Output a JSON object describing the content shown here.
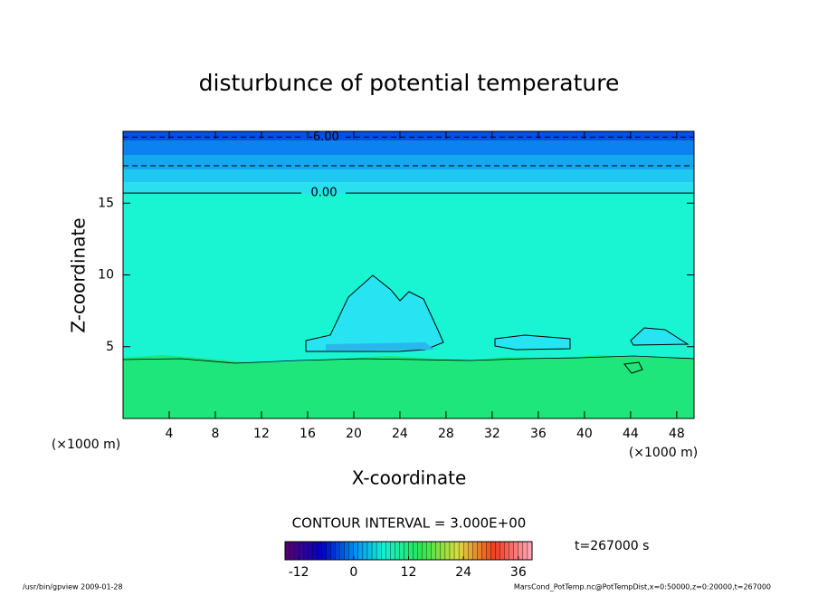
{
  "chart_data": {
    "type": "contour",
    "title": "disturbunce of potential temperature",
    "xlabel": "X-coordinate",
    "ylabel": "Z-coordinate",
    "x_unit_left": "(×1000 m)",
    "x_unit_right": "(×1000 m)",
    "xlim": [
      0,
      49.5
    ],
    "xticks": [
      4,
      8,
      12,
      16,
      20,
      24,
      28,
      32,
      36,
      40,
      44,
      48
    ],
    "ylim": [
      0,
      20
    ],
    "yticks": [
      5,
      10,
      15
    ],
    "contour_lines": [
      {
        "value": -6,
        "label": "-6.00",
        "z": 19.6,
        "style": "dashed"
      },
      {
        "value": -3,
        "z": 17.6,
        "style": "dashed"
      },
      {
        "value": 0,
        "label": "0.00",
        "z": 15.7,
        "style": "solid"
      }
    ],
    "contour_interval": "CONTOUR INTERVAL = 3.000E+00",
    "time_label": "t=267000 s",
    "clim": [
      -15,
      39
    ],
    "cticks": [
      -12,
      0,
      12,
      24,
      36
    ],
    "footer_left": "/usr/bin/gpview   2009-01-28",
    "footer_right": "MarsCond_PotTemp.nc@PotTempDist,x=0:50000,z=0:20000,t=267000"
  }
}
